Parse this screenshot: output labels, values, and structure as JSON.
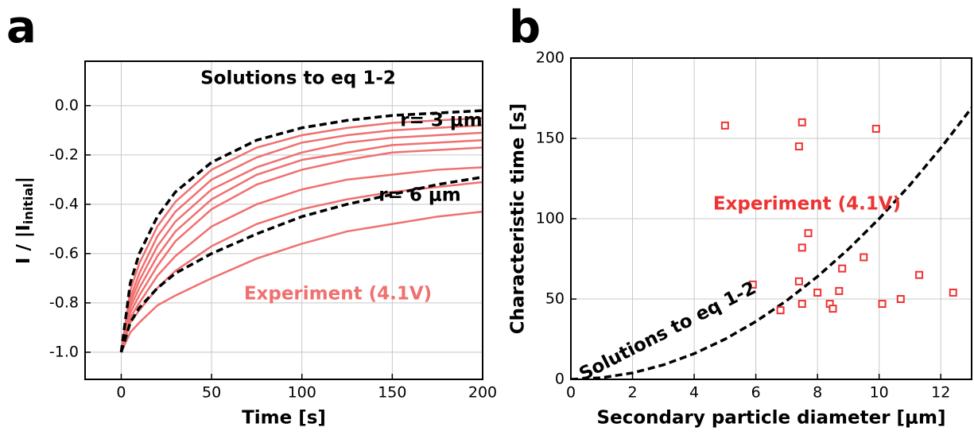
{
  "chart_data": [
    {
      "type": "line",
      "panel": "a",
      "x_label": "Time [s]",
      "y_label": {
        "main": "I / |I",
        "sub": "initial",
        "end": "|"
      },
      "xlim": [
        -20,
        200
      ],
      "ylim": [
        -1.11,
        0.18
      ],
      "xticks": [
        0,
        50,
        100,
        150,
        200
      ],
      "yticks": [
        {
          "value": -1,
          "label": "-1.0"
        },
        -0.8,
        -0.6,
        -0.4,
        -0.2,
        {
          "value": 0,
          "label": "0.0"
        }
      ],
      "grid": true,
      "x": [
        0,
        5,
        10,
        20,
        30,
        50,
        75,
        100,
        125,
        150,
        175,
        200
      ],
      "series": [
        {
          "color": "#f07070",
          "dash": false,
          "values": [
            -1.0,
            -0.75,
            -0.64,
            -0.49,
            -0.39,
            -0.26,
            -0.17,
            -0.12,
            -0.09,
            -0.07,
            -0.06,
            -0.05
          ]
        },
        {
          "color": "#f07070",
          "dash": false,
          "values": [
            -1.0,
            -0.78,
            -0.68,
            -0.53,
            -0.43,
            -0.3,
            -0.21,
            -0.15,
            -0.12,
            -0.1,
            -0.09,
            -0.08
          ]
        },
        {
          "color": "#f07070",
          "dash": false,
          "values": [
            -1.0,
            -0.8,
            -0.71,
            -0.57,
            -0.47,
            -0.34,
            -0.25,
            -0.19,
            -0.15,
            -0.13,
            -0.12,
            -0.11
          ]
        },
        {
          "color": "#f07070",
          "dash": false,
          "values": [
            -1.0,
            -0.82,
            -0.74,
            -0.61,
            -0.51,
            -0.38,
            -0.28,
            -0.22,
            -0.19,
            -0.16,
            -0.15,
            -0.14
          ]
        },
        {
          "color": "#f07070",
          "dash": false,
          "values": [
            -1.0,
            -0.84,
            -0.77,
            -0.65,
            -0.55,
            -0.42,
            -0.32,
            -0.26,
            -0.22,
            -0.19,
            -0.18,
            -0.17
          ]
        },
        {
          "color": "#f07070",
          "dash": false,
          "values": [
            -1.0,
            -0.86,
            -0.8,
            -0.69,
            -0.61,
            -0.49,
            -0.4,
            -0.34,
            -0.3,
            -0.28,
            -0.26,
            -0.25
          ]
        },
        {
          "color": "#f07070",
          "dash": false,
          "values": [
            -1.0,
            -0.88,
            -0.83,
            -0.74,
            -0.67,
            -0.57,
            -0.48,
            -0.42,
            -0.38,
            -0.35,
            -0.33,
            -0.31
          ]
        },
        {
          "color": "#f07070",
          "dash": false,
          "values": [
            -1.0,
            -0.92,
            -0.88,
            -0.81,
            -0.77,
            -0.7,
            -0.62,
            -0.56,
            -0.51,
            -0.48,
            -0.45,
            -0.43
          ]
        },
        {
          "color": "#000000",
          "dash": true,
          "values": [
            -1.0,
            -0.72,
            -0.6,
            -0.45,
            -0.35,
            -0.23,
            -0.14,
            -0.09,
            -0.06,
            -0.04,
            -0.03,
            -0.02
          ]
        },
        {
          "color": "#000000",
          "dash": true,
          "values": [
            -1.0,
            -0.88,
            -0.82,
            -0.74,
            -0.68,
            -0.6,
            -0.52,
            -0.45,
            -0.4,
            -0.36,
            -0.32,
            -0.29
          ]
        }
      ],
      "annotations": [
        {
          "text": "Solutions to eq 1-2",
          "color": "#000000"
        },
        {
          "text": "r= 3 μm",
          "color": "#000000"
        },
        {
          "text": "r= 6 μm",
          "color": "#000000"
        },
        {
          "text": "Experiment (4.1V)",
          "color": "#f07070"
        }
      ]
    },
    {
      "type": "scatter",
      "panel": "b",
      "x_label": "Secondary particle diameter [μm]",
      "y_label": "Characteristic time [s]",
      "xlim": [
        0,
        13
      ],
      "ylim": [
        0,
        200
      ],
      "xticks": [
        0,
        2,
        4,
        6,
        8,
        10,
        12
      ],
      "yticks": [
        0,
        50,
        100,
        150,
        200
      ],
      "grid": true,
      "points": {
        "color": "#ee3333",
        "x": [
          5.0,
          7.5,
          7.4,
          9.9,
          7.7,
          7.5,
          9.5,
          11.3,
          5.9,
          7.4,
          8.8,
          8.0,
          8.7,
          12.4,
          6.8,
          7.5,
          8.4,
          8.5,
          10.1,
          10.7
        ],
        "values": [
          158,
          160,
          145,
          156,
          91,
          82,
          76,
          65,
          59,
          61,
          69,
          54,
          55,
          54,
          43,
          47,
          47,
          44,
          47,
          50
        ]
      },
      "curve": {
        "color": "#000000",
        "x": [
          0,
          1,
          2,
          3,
          4,
          5,
          6,
          7,
          8,
          9,
          10,
          11,
          12,
          13
        ],
        "values": [
          0,
          1,
          4,
          9,
          16,
          25,
          36,
          49,
          64,
          81,
          100,
          121,
          144,
          169
        ]
      },
      "annotations": [
        {
          "text": "Experiment (4.1V)",
          "color": "#ee3333"
        },
        {
          "text": "Solutions to eq 1-2",
          "color": "#000000"
        }
      ]
    }
  ]
}
